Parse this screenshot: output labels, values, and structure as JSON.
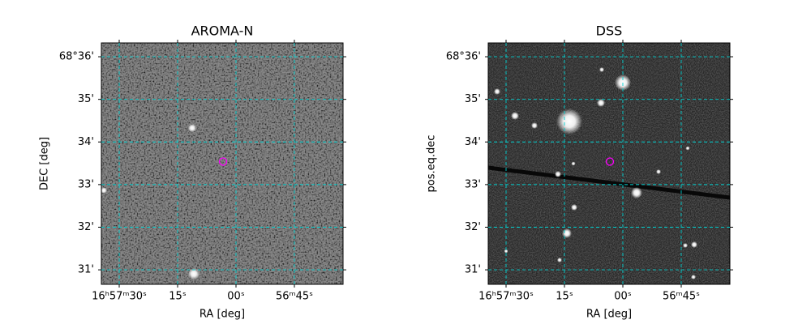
{
  "chart_data": [
    {
      "type": "image",
      "title": "AROMA-N",
      "xlabel": "RA [deg]",
      "ylabel": "DEC [deg]",
      "xlim": [
        254.3941,
        254.1354
      ],
      "ylim": [
        68.511,
        68.6054
      ],
      "xticks": [
        {
          "value": 254.375,
          "label": "16ʰ57ᵐ30ˢ"
        },
        {
          "value": 254.3125,
          "label": "15ˢ"
        },
        {
          "value": 254.25,
          "label": "00ˢ"
        },
        {
          "value": 254.1875,
          "label": "56ᵐ45ˢ"
        }
      ],
      "yticks": [
        {
          "value": 68.6,
          "label": "68°36'"
        },
        {
          "value": 68.58333,
          "label": "35'"
        },
        {
          "value": 68.56667,
          "label": "34'"
        },
        {
          "value": 68.55,
          "label": "33'"
        },
        {
          "value": 68.53333,
          "label": "32'"
        },
        {
          "value": 68.51667,
          "label": "31'"
        }
      ],
      "grid": true,
      "marker": {
        "x": 254.2639,
        "y": 68.559,
        "color": "#ff00ff"
      }
    },
    {
      "type": "image",
      "title": "DSS",
      "xlabel": "RA [deg]",
      "ylabel": "pos.eq.dec",
      "xlim": [
        254.3941,
        254.1354
      ],
      "ylim": [
        68.511,
        68.6054
      ],
      "xticks": [
        {
          "value": 254.375,
          "label": "16ʰ57ᵐ30ˢ"
        },
        {
          "value": 254.3125,
          "label": "15ˢ"
        },
        {
          "value": 254.25,
          "label": "00ˢ"
        },
        {
          "value": 254.1875,
          "label": "56ᵐ45ˢ"
        }
      ],
      "yticks": [
        {
          "value": 68.6,
          "label": "68°36'"
        },
        {
          "value": 68.58333,
          "label": "35'"
        },
        {
          "value": 68.56667,
          "label": "34'"
        },
        {
          "value": 68.55,
          "label": "33'"
        },
        {
          "value": 68.53333,
          "label": "32'"
        },
        {
          "value": 68.51667,
          "label": "31'"
        }
      ],
      "grid": true,
      "marker": {
        "x": 254.2639,
        "y": 68.559,
        "color": "#ff00ff"
      }
    }
  ]
}
